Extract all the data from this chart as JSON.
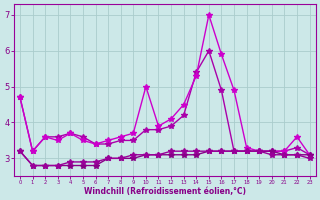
{
  "xlabel": "Windchill (Refroidissement éolien,°C)",
  "bg_color": "#cce8e8",
  "grid_color": "#aacccc",
  "xlim": [
    -0.5,
    23.5
  ],
  "ylim": [
    2.5,
    7.3
  ],
  "xticks": [
    0,
    1,
    2,
    3,
    4,
    5,
    6,
    7,
    8,
    9,
    10,
    11,
    12,
    13,
    14,
    15,
    16,
    17,
    18,
    19,
    20,
    21,
    22,
    23
  ],
  "yticks": [
    3,
    4,
    5,
    6,
    7
  ],
  "series": [
    {
      "x": [
        0,
        1,
        2,
        3,
        4,
        5,
        6,
        7,
        8,
        9,
        10,
        11,
        12,
        13,
        14,
        15,
        16,
        17,
        18,
        19,
        20,
        21,
        22,
        23
      ],
      "y": [
        4.7,
        3.2,
        3.6,
        3.6,
        3.7,
        3.6,
        3.4,
        3.4,
        3.5,
        3.5,
        3.8,
        3.8,
        3.9,
        4.2,
        5.4,
        6.0,
        4.9,
        3.2,
        3.2,
        3.2,
        3.2,
        3.2,
        3.3,
        3.1
      ],
      "color": "#aa00aa",
      "linewidth": 1.0,
      "marker": "*",
      "markersize": 4
    },
    {
      "x": [
        0,
        1,
        2,
        3,
        4,
        5,
        6,
        7,
        8,
        9,
        10,
        11,
        12,
        13,
        14,
        15,
        16,
        17,
        18,
        19,
        20,
        21,
        22,
        23
      ],
      "y": [
        4.7,
        3.2,
        3.6,
        3.5,
        3.7,
        3.5,
        3.4,
        3.5,
        3.6,
        3.7,
        5.0,
        3.9,
        4.1,
        4.5,
        5.3,
        7.0,
        5.9,
        4.9,
        3.3,
        3.2,
        3.2,
        3.2,
        3.6,
        3.1
      ],
      "color": "#cc00cc",
      "linewidth": 1.0,
      "marker": "*",
      "markersize": 4
    },
    {
      "x": [
        0,
        1,
        2,
        3,
        4,
        5,
        6,
        7,
        8,
        9,
        10,
        11,
        12,
        13,
        14,
        15,
        16,
        17,
        18,
        19,
        20,
        21,
        22,
        23
      ],
      "y": [
        3.2,
        2.8,
        2.8,
        2.8,
        2.8,
        2.8,
        2.8,
        3.0,
        3.0,
        3.0,
        3.1,
        3.1,
        3.1,
        3.1,
        3.1,
        3.2,
        3.2,
        3.2,
        3.2,
        3.2,
        3.2,
        3.1,
        3.1,
        3.1
      ],
      "color": "#880088",
      "linewidth": 1.0,
      "marker": "*",
      "markersize": 4
    },
    {
      "x": [
        0,
        1,
        2,
        3,
        4,
        5,
        6,
        7,
        8,
        9,
        10,
        11,
        12,
        13,
        14,
        15,
        16,
        17,
        18,
        19,
        20,
        21,
        22,
        23
      ],
      "y": [
        3.2,
        2.8,
        2.8,
        2.8,
        2.9,
        2.9,
        2.9,
        3.0,
        3.0,
        3.1,
        3.1,
        3.1,
        3.2,
        3.2,
        3.2,
        3.2,
        3.2,
        3.2,
        3.2,
        3.2,
        3.1,
        3.1,
        3.1,
        3.0
      ],
      "color": "#990099",
      "linewidth": 1.0,
      "marker": "*",
      "markersize": 4
    }
  ]
}
